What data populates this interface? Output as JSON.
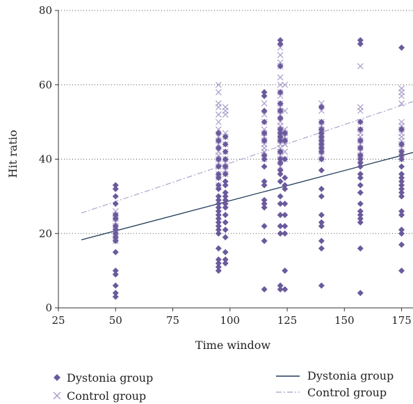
{
  "chart_data": {
    "type": "scatter",
    "xlabel": "Time window",
    "ylabel": "Hit ratio",
    "xlim": [
      25,
      180
    ],
    "ylim": [
      0,
      80
    ],
    "xticks": [
      25,
      50,
      75,
      100,
      125,
      150,
      175
    ],
    "yticks": [
      0,
      20,
      40,
      60,
      80
    ],
    "grid": "horizontal-dotted",
    "legend_placement": "bottom",
    "colors": {
      "dystonia": "#6a5a9c",
      "control": "#a99bc9",
      "dystonia_line": "#1f3a58",
      "control_line": "#a99bc9"
    },
    "series": [
      {
        "name": "Dystonia group",
        "marker": "diamond",
        "points": [
          [
            50,
            33
          ],
          [
            50,
            32
          ],
          [
            50,
            30
          ],
          [
            50,
            28
          ],
          [
            50,
            25
          ],
          [
            50,
            24
          ],
          [
            50,
            22
          ],
          [
            50,
            21
          ],
          [
            50,
            20
          ],
          [
            50,
            19
          ],
          [
            50,
            18
          ],
          [
            50,
            15
          ],
          [
            50,
            10
          ],
          [
            50,
            9
          ],
          [
            50,
            6
          ],
          [
            50,
            4
          ],
          [
            50,
            3
          ],
          [
            95,
            47
          ],
          [
            95,
            45
          ],
          [
            95,
            43
          ],
          [
            95,
            40
          ],
          [
            95,
            38
          ],
          [
            95,
            36
          ],
          [
            95,
            35
          ],
          [
            95,
            33
          ],
          [
            95,
            32
          ],
          [
            95,
            30
          ],
          [
            95,
            29
          ],
          [
            95,
            28
          ],
          [
            95,
            27
          ],
          [
            95,
            26
          ],
          [
            95,
            25
          ],
          [
            95,
            24
          ],
          [
            95,
            23
          ],
          [
            95,
            22
          ],
          [
            95,
            21
          ],
          [
            95,
            20
          ],
          [
            95,
            16
          ],
          [
            95,
            13
          ],
          [
            95,
            12
          ],
          [
            95,
            11
          ],
          [
            95,
            10
          ],
          [
            98,
            46
          ],
          [
            98,
            44
          ],
          [
            98,
            42
          ],
          [
            98,
            40
          ],
          [
            98,
            38
          ],
          [
            98,
            36
          ],
          [
            98,
            34
          ],
          [
            98,
            33
          ],
          [
            98,
            31
          ],
          [
            98,
            30
          ],
          [
            98,
            29
          ],
          [
            98,
            28
          ],
          [
            98,
            27
          ],
          [
            98,
            25
          ],
          [
            98,
            23
          ],
          [
            98,
            21
          ],
          [
            98,
            19
          ],
          [
            98,
            15
          ],
          [
            98,
            13
          ],
          [
            98,
            12
          ],
          [
            115,
            58
          ],
          [
            115,
            57
          ],
          [
            115,
            53
          ],
          [
            115,
            50
          ],
          [
            115,
            47
          ],
          [
            115,
            45
          ],
          [
            115,
            41
          ],
          [
            115,
            40
          ],
          [
            115,
            38
          ],
          [
            115,
            34
          ],
          [
            115,
            33
          ],
          [
            115,
            29
          ],
          [
            115,
            28
          ],
          [
            115,
            27
          ],
          [
            115,
            22
          ],
          [
            115,
            18
          ],
          [
            115,
            5
          ],
          [
            122,
            72
          ],
          [
            122,
            71
          ],
          [
            122,
            65
          ],
          [
            122,
            58
          ],
          [
            122,
            55
          ],
          [
            122,
            53
          ],
          [
            122,
            51
          ],
          [
            122,
            48
          ],
          [
            122,
            47
          ],
          [
            122,
            46
          ],
          [
            122,
            45
          ],
          [
            122,
            42
          ],
          [
            122,
            40
          ],
          [
            122,
            39
          ],
          [
            122,
            37
          ],
          [
            122,
            36
          ],
          [
            122,
            34
          ],
          [
            122,
            30
          ],
          [
            122,
            28
          ],
          [
            122,
            25
          ],
          [
            122,
            22
          ],
          [
            122,
            20
          ],
          [
            122,
            6
          ],
          [
            122,
            5
          ],
          [
            124,
            47
          ],
          [
            124,
            45
          ],
          [
            124,
            40
          ],
          [
            124,
            35
          ],
          [
            124,
            33
          ],
          [
            124,
            32
          ],
          [
            124,
            28
          ],
          [
            124,
            25
          ],
          [
            124,
            22
          ],
          [
            124,
            20
          ],
          [
            124,
            10
          ],
          [
            124,
            5
          ],
          [
            140,
            54
          ],
          [
            140,
            50
          ],
          [
            140,
            48
          ],
          [
            140,
            47
          ],
          [
            140,
            46
          ],
          [
            140,
            45
          ],
          [
            140,
            44
          ],
          [
            140,
            43
          ],
          [
            140,
            42
          ],
          [
            140,
            40
          ],
          [
            140,
            37
          ],
          [
            140,
            32
          ],
          [
            140,
            30
          ],
          [
            140,
            25
          ],
          [
            140,
            23
          ],
          [
            140,
            22
          ],
          [
            140,
            18
          ],
          [
            140,
            16
          ],
          [
            140,
            6
          ],
          [
            157,
            72
          ],
          [
            157,
            71
          ],
          [
            157,
            50
          ],
          [
            157,
            48
          ],
          [
            157,
            45
          ],
          [
            157,
            43
          ],
          [
            157,
            41
          ],
          [
            157,
            40
          ],
          [
            157,
            39
          ],
          [
            157,
            38
          ],
          [
            157,
            36
          ],
          [
            157,
            35
          ],
          [
            157,
            33
          ],
          [
            157,
            31
          ],
          [
            157,
            28
          ],
          [
            157,
            26
          ],
          [
            157,
            25
          ],
          [
            157,
            24
          ],
          [
            157,
            23
          ],
          [
            157,
            16
          ],
          [
            157,
            4
          ],
          [
            175,
            70
          ],
          [
            175,
            48
          ],
          [
            175,
            44
          ],
          [
            175,
            42
          ],
          [
            175,
            41
          ],
          [
            175,
            40
          ],
          [
            175,
            38
          ],
          [
            175,
            36
          ],
          [
            175,
            35
          ],
          [
            175,
            34
          ],
          [
            175,
            33
          ],
          [
            175,
            32
          ],
          [
            175,
            31
          ],
          [
            175,
            30
          ],
          [
            175,
            26
          ],
          [
            175,
            25
          ],
          [
            175,
            21
          ],
          [
            175,
            20
          ],
          [
            175,
            17
          ],
          [
            175,
            10
          ]
        ]
      },
      {
        "name": "Control group",
        "marker": "x",
        "points": [
          [
            50,
            26
          ],
          [
            50,
            25
          ],
          [
            50,
            24
          ],
          [
            50,
            23
          ],
          [
            50,
            22
          ],
          [
            50,
            21
          ],
          [
            50,
            20
          ],
          [
            50,
            19
          ],
          [
            50,
            18
          ],
          [
            95,
            60
          ],
          [
            95,
            58
          ],
          [
            95,
            55
          ],
          [
            95,
            54
          ],
          [
            95,
            52
          ],
          [
            95,
            50
          ],
          [
            95,
            48
          ],
          [
            95,
            46
          ],
          [
            95,
            45
          ],
          [
            95,
            44
          ],
          [
            95,
            42
          ],
          [
            95,
            41
          ],
          [
            95,
            40
          ],
          [
            95,
            39
          ],
          [
            95,
            38
          ],
          [
            95,
            36
          ],
          [
            95,
            35
          ],
          [
            95,
            33
          ],
          [
            98,
            54
          ],
          [
            98,
            53
          ],
          [
            98,
            52
          ],
          [
            98,
            47
          ],
          [
            98,
            46
          ],
          [
            98,
            44
          ],
          [
            98,
            42
          ],
          [
            98,
            40
          ],
          [
            98,
            39
          ],
          [
            98,
            38
          ],
          [
            98,
            37
          ],
          [
            98,
            36
          ],
          [
            115,
            55
          ],
          [
            115,
            52
          ],
          [
            115,
            50
          ],
          [
            115,
            48
          ],
          [
            115,
            47
          ],
          [
            115,
            46
          ],
          [
            115,
            45
          ],
          [
            115,
            44
          ],
          [
            115,
            43
          ],
          [
            115,
            42
          ],
          [
            115,
            40
          ],
          [
            122,
            70
          ],
          [
            122,
            68
          ],
          [
            122,
            66
          ],
          [
            122,
            65
          ],
          [
            122,
            62
          ],
          [
            122,
            60
          ],
          [
            122,
            58
          ],
          [
            122,
            57
          ],
          [
            122,
            55
          ],
          [
            122,
            54
          ],
          [
            122,
            53
          ],
          [
            122,
            52
          ],
          [
            122,
            50
          ],
          [
            122,
            49
          ],
          [
            122,
            48
          ],
          [
            122,
            47
          ],
          [
            122,
            46
          ],
          [
            122,
            45
          ],
          [
            122,
            44
          ],
          [
            122,
            43
          ],
          [
            122,
            42
          ],
          [
            122,
            41
          ],
          [
            122,
            40
          ],
          [
            122,
            38
          ],
          [
            124,
            60
          ],
          [
            124,
            53
          ],
          [
            124,
            48
          ],
          [
            124,
            47
          ],
          [
            124,
            46
          ],
          [
            124,
            45
          ],
          [
            124,
            44
          ],
          [
            124,
            42
          ],
          [
            124,
            40
          ],
          [
            140,
            55
          ],
          [
            140,
            53
          ],
          [
            140,
            50
          ],
          [
            140,
            49
          ],
          [
            140,
            48
          ],
          [
            140,
            47
          ],
          [
            140,
            46
          ],
          [
            140,
            45
          ],
          [
            140,
            44
          ],
          [
            140,
            43
          ],
          [
            140,
            42
          ],
          [
            140,
            41
          ],
          [
            140,
            40
          ],
          [
            157,
            65
          ],
          [
            157,
            54
          ],
          [
            157,
            53
          ],
          [
            157,
            50
          ],
          [
            157,
            48
          ],
          [
            157,
            47
          ],
          [
            157,
            46
          ],
          [
            157,
            45
          ],
          [
            157,
            44
          ],
          [
            157,
            43
          ],
          [
            157,
            42
          ],
          [
            157,
            41
          ],
          [
            157,
            40
          ],
          [
            175,
            59
          ],
          [
            175,
            58
          ],
          [
            175,
            57
          ],
          [
            175,
            55
          ],
          [
            175,
            50
          ],
          [
            175,
            49
          ],
          [
            175,
            48
          ],
          [
            175,
            47
          ],
          [
            175,
            46
          ],
          [
            175,
            45
          ],
          [
            175,
            44
          ],
          [
            175,
            43
          ],
          [
            175,
            42
          ],
          [
            175,
            40
          ]
        ]
      }
    ],
    "trendlines": [
      {
        "name": "Dystonia group",
        "style": "solid",
        "x": [
          35,
          180
        ],
        "y": [
          18.3,
          41.8
        ]
      },
      {
        "name": "Control group",
        "style": "dash-dot",
        "x": [
          35,
          180
        ],
        "y": [
          25.5,
          55.5
        ]
      }
    ]
  }
}
